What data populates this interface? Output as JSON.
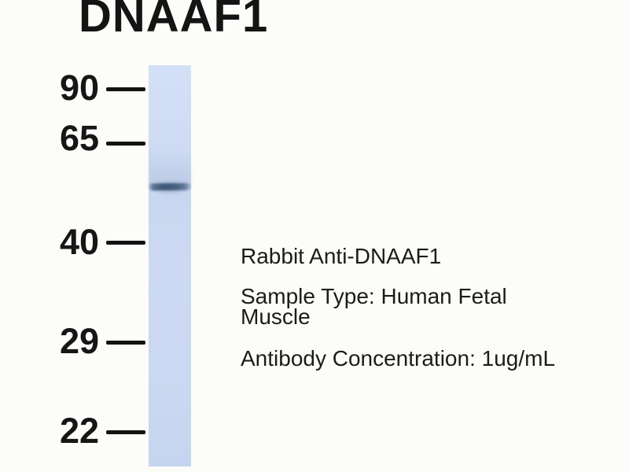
{
  "figure": {
    "title": "DNAAF1",
    "markers": [
      "90",
      "65",
      "40",
      "29",
      "22"
    ],
    "annotations": {
      "antibody": "Rabbit Anti-DNAAF1",
      "sample_type": "Sample Type: Human Fetal Muscle",
      "concentration": "Antibody Concentration: 1ug/mL"
    },
    "colors": {
      "background": "#fcfcf9",
      "lane_blue": "#cdd9f2",
      "band_blue": "#3e5678",
      "text": "#1a1a1a"
    }
  }
}
